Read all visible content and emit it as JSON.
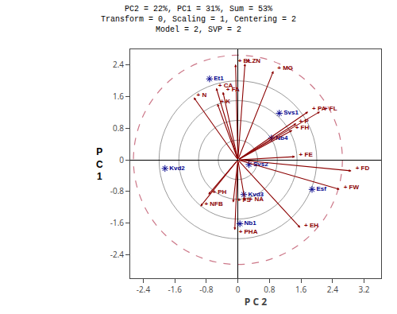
{
  "chart_data": {
    "type": "biplot",
    "title": "PC2 = 22%, PC1 = 31%, Sum = 53%\nTransform = 0, Scaling = 1, Centering = 2\nModel = 2, SVP = 2",
    "xlabel": "P C 2",
    "ylabel": "P\nC\n1",
    "xlim": [
      -2.7,
      3.6
    ],
    "ylim": [
      -3.0,
      2.8
    ],
    "xticks": [
      -2.4,
      -1.6,
      -0.8,
      0,
      0.8,
      1.6,
      2.4,
      3.2
    ],
    "yticks": [
      -2.4,
      -1.6,
      -0.8,
      0,
      0.8,
      1.6,
      2.4
    ],
    "grid": false,
    "vectors": {
      "color": "#8B0000",
      "marker": "arrow",
      "points": [
        {
          "label": "+ BL",
          "x": -0.06,
          "y": 2.42,
          "label_x": 0.0,
          "label_y": 2.5
        },
        {
          "label": "+ ZN",
          "x": 0.18,
          "y": 2.44,
          "label_x": 0.22,
          "label_y": 2.5
        },
        {
          "label": "+ MG",
          "x": 0.9,
          "y": 2.25,
          "label_x": 1.0,
          "label_y": 2.32
        },
        {
          "label": "+ CA",
          "x": -0.55,
          "y": 1.82,
          "label_x": -0.5,
          "label_y": 1.88
        },
        {
          "label": "+ FA",
          "x": -0.38,
          "y": 1.72,
          "label_x": -0.3,
          "label_y": 1.78
        },
        {
          "label": "+ K",
          "x": -0.52,
          "y": 1.42,
          "label_x": -0.45,
          "label_y": 1.48
        },
        {
          "label": "+ N",
          "x": -1.12,
          "y": 1.58,
          "label_x": -1.05,
          "label_y": 1.64
        },
        {
          "label": "+ PA",
          "x": 1.78,
          "y": 1.22,
          "label_x": 1.88,
          "label_y": 1.28
        },
        {
          "label": "+ FL",
          "x": 2.08,
          "y": 1.22,
          "label_x": 2.18,
          "label_y": 1.28
        },
        {
          "label": "+ P",
          "x": 1.48,
          "y": 0.92,
          "label_x": 1.55,
          "label_y": 0.97
        },
        {
          "label": "+ FH",
          "x": 1.38,
          "y": 0.75,
          "label_x": 1.45,
          "label_y": 0.8
        },
        {
          "label": "+ FE",
          "x": 1.45,
          "y": 0.08,
          "label_x": 1.55,
          "label_y": 0.13
        },
        {
          "label": "+ FD",
          "x": 2.88,
          "y": -0.28,
          "label_x": 2.98,
          "label_y": -0.23
        },
        {
          "label": "+ FW",
          "x": 2.58,
          "y": -0.75,
          "label_x": 2.68,
          "label_y": -0.7
        },
        {
          "label": "+ EH",
          "x": 1.58,
          "y": -1.72,
          "label_x": 1.68,
          "label_y": -1.67
        },
        {
          "label": "+ PHA",
          "x": -0.08,
          "y": -1.78,
          "label_x": 0.02,
          "label_y": -1.83
        },
        {
          "label": "+ NA",
          "x": 0.18,
          "y": -1.05,
          "label_x": 0.28,
          "label_y": -1.0
        },
        {
          "label": "+ FS",
          "x": -0.12,
          "y": -1.08,
          "label_x": -0.02,
          "label_y": -1.03
        },
        {
          "label": "+ PH",
          "x": -0.75,
          "y": -0.88,
          "label_x": -0.65,
          "label_y": -0.83
        },
        {
          "label": "+ NFB",
          "x": -0.95,
          "y": -1.18,
          "label_x": -0.85,
          "label_y": -1.13
        }
      ]
    },
    "points": {
      "color": "#00008B",
      "marker": "asterisk",
      "points": [
        {
          "label": "Et1",
          "x": -0.72,
          "y": 2.05
        },
        {
          "label": "Svs1",
          "x": 1.05,
          "y": 1.18
        },
        {
          "label": "Nb4",
          "x": 0.85,
          "y": 0.55
        },
        {
          "label": "Svs2",
          "x": 0.28,
          "y": -0.12
        },
        {
          "label": "Kvd3",
          "x": 0.15,
          "y": -0.88
        },
        {
          "label": "Kvd2",
          "x": -1.85,
          "y": -0.22
        },
        {
          "label": "Esf",
          "x": 1.88,
          "y": -0.75
        },
        {
          "label": "Nb1",
          "x": 0.05,
          "y": -1.62
        }
      ]
    },
    "circles": {
      "radii": [
        0.5,
        1.0,
        1.5,
        2.0
      ],
      "color": "#808080",
      "line_style": "solid"
    },
    "outer_circle": {
      "radius": 2.65,
      "color": "#cc7788",
      "line_style": "dashed"
    }
  }
}
